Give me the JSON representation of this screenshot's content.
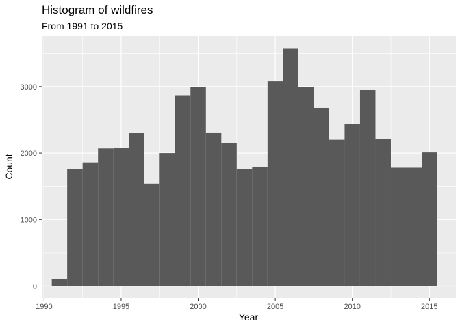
{
  "chart_data": {
    "type": "bar",
    "title": "Histogram of wildfires",
    "subtitle": "From 1991 to 2015",
    "xlabel": "Year",
    "ylabel": "Count",
    "xlim": [
      1989.85,
      2016.72
    ],
    "ylim": [
      -180,
      3760
    ],
    "x_ticks": [
      1990,
      1995,
      2000,
      2005,
      2010,
      2015
    ],
    "y_ticks": [
      0,
      1000,
      2000,
      3000
    ],
    "bin_width": 1,
    "bin_centers": [
      1991,
      1992,
      1993,
      1994,
      1995,
      1996,
      1997,
      1998,
      1999,
      2000,
      2001,
      2002,
      2003,
      2004,
      2005,
      2006,
      2007,
      2008,
      2009,
      2010,
      2011,
      2012,
      2013,
      2014,
      2015
    ],
    "values": [
      100,
      1760,
      1860,
      2070,
      2080,
      2300,
      1540,
      2000,
      2870,
      2990,
      2310,
      2150,
      1760,
      1790,
      3080,
      3580,
      2990,
      2680,
      2200,
      2440,
      2950,
      2210,
      1780,
      1780,
      2010
    ],
    "bar_color": "#595959",
    "panel_background": "#ebebeb",
    "grid": true,
    "grid_color": "#ffffff",
    "legend": "none"
  }
}
